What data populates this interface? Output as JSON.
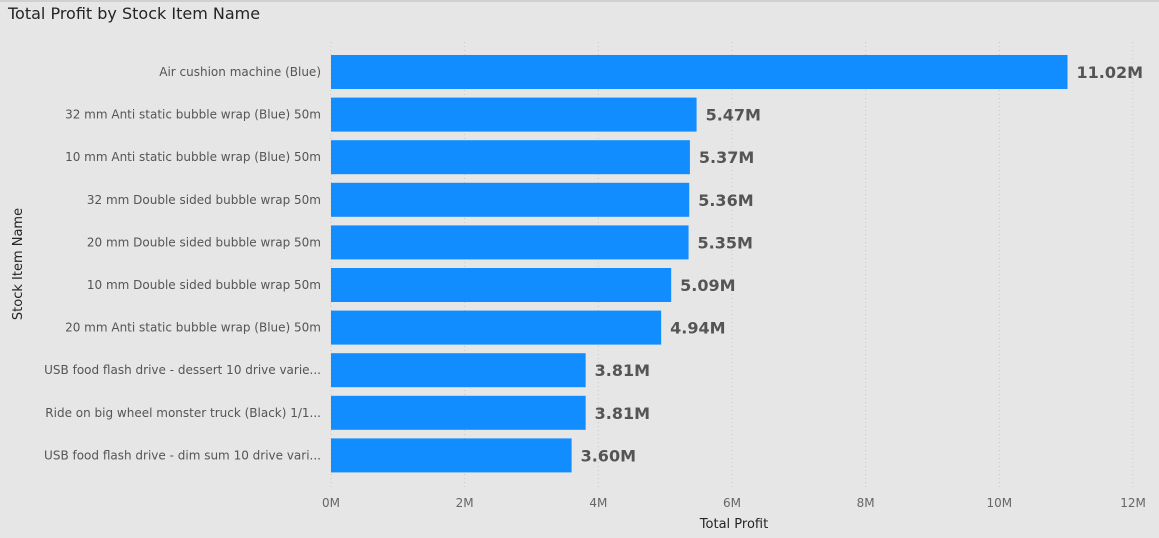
{
  "chart_data": {
    "type": "bar",
    "orientation": "horizontal",
    "title": "Total Profit by Stock Item Name",
    "xlabel": "Total Profit",
    "ylabel": "Stock Item Name",
    "categories": [
      "Air cushion machine (Blue)",
      "32 mm Anti static bubble wrap (Blue) 50m",
      "10 mm Anti static bubble wrap (Blue) 50m",
      "32 mm Double sided bubble wrap 50m",
      "20 mm Double sided bubble wrap 50m",
      "10 mm Double sided bubble wrap 50m",
      "20 mm Anti static bubble wrap (Blue) 50m",
      "USB food flash drive - dessert 10 drive varie...",
      "Ride on big wheel monster truck (Black) 1/1...",
      "USB food flash drive - dim sum 10 drive vari..."
    ],
    "values": [
      11020000,
      5470000,
      5370000,
      5360000,
      5350000,
      5090000,
      4940000,
      3810000,
      3810000,
      3600000
    ],
    "data_labels": [
      "11.02M",
      "5.47M",
      "5.37M",
      "5.36M",
      "5.35M",
      "5.09M",
      "4.94M",
      "3.81M",
      "3.81M",
      "3.60M"
    ],
    "xticks": [
      0,
      2000000,
      4000000,
      6000000,
      8000000,
      10000000,
      12000000
    ],
    "xtick_labels": [
      "0M",
      "2M",
      "4M",
      "6M",
      "8M",
      "10M",
      "12M"
    ],
    "xlim": [
      0,
      12000000
    ],
    "grid": true,
    "bar_color": "#118dff"
  }
}
